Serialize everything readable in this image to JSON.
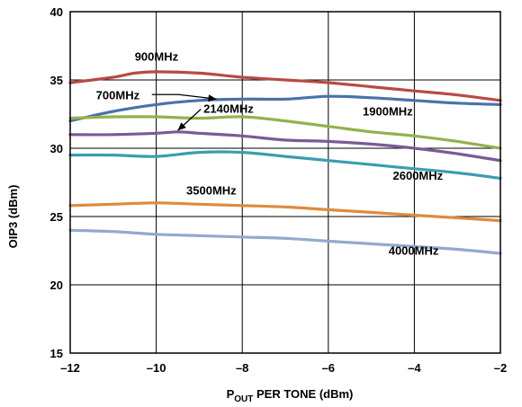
{
  "chart_data": {
    "type": "line",
    "title": "",
    "xlabel": {
      "main": "P",
      "sub": "OUT",
      "rest": " PER TONE (dBm)"
    },
    "ylabel": "OIP3 (dBm)",
    "xlim": [
      -12,
      -2
    ],
    "ylim": [
      15,
      40
    ],
    "xticks": [
      -12,
      -10,
      -8,
      -6,
      -4,
      -2
    ],
    "xtick_labels": [
      "–12",
      "–10",
      "–8",
      "–6",
      "–4",
      "–2"
    ],
    "yticks": [
      15,
      20,
      25,
      30,
      35,
      40
    ],
    "ytick_labels": [
      "15",
      "20",
      "25",
      "30",
      "35",
      "40"
    ],
    "grid": true,
    "series": [
      {
        "name": "900MHz",
        "color": "#b84a45",
        "x": [
          -12,
          -11,
          -10.5,
          -10,
          -9,
          -8,
          -7,
          -6,
          -5,
          -4,
          -3,
          -2
        ],
        "y": [
          34.8,
          35.2,
          35.5,
          35.6,
          35.5,
          35.2,
          35.0,
          34.8,
          34.5,
          34.2,
          33.9,
          33.5
        ]
      },
      {
        "name": "700MHz",
        "color": "#4a72aa",
        "x": [
          -12,
          -11,
          -10,
          -9,
          -8,
          -7,
          -6,
          -5,
          -4,
          -3,
          -2
        ],
        "y": [
          32.0,
          32.7,
          33.2,
          33.5,
          33.6,
          33.6,
          33.8,
          33.7,
          33.5,
          33.3,
          33.2
        ]
      },
      {
        "name": "1900MHz",
        "color": "#94b14e",
        "x": [
          -12,
          -11,
          -10,
          -9,
          -8,
          -7,
          -6,
          -5,
          -4,
          -3,
          -2
        ],
        "y": [
          32.2,
          32.3,
          32.3,
          32.2,
          32.3,
          32.0,
          31.6,
          31.2,
          30.9,
          30.5,
          30.0
        ]
      },
      {
        "name": "2140MHz",
        "color": "#7a5a99",
        "x": [
          -12,
          -11,
          -10,
          -9.5,
          -9,
          -8,
          -7,
          -6,
          -5,
          -4,
          -3,
          -2
        ],
        "y": [
          31.0,
          31.0,
          31.1,
          31.2,
          31.1,
          30.9,
          30.6,
          30.5,
          30.3,
          30.0,
          29.6,
          29.1
        ]
      },
      {
        "name": "2600MHz",
        "color": "#3a9db0",
        "x": [
          -12,
          -11,
          -10,
          -9,
          -8,
          -7,
          -6,
          -5,
          -4,
          -3,
          -2
        ],
        "y": [
          29.5,
          29.5,
          29.4,
          29.7,
          29.7,
          29.4,
          29.1,
          28.8,
          28.5,
          28.2,
          27.8
        ]
      },
      {
        "name": "3500MHz",
        "color": "#e08a3c",
        "x": [
          -12,
          -11,
          -10,
          -9,
          -8,
          -7,
          -6,
          -5,
          -4,
          -3,
          -2
        ],
        "y": [
          25.8,
          25.9,
          26.0,
          25.9,
          25.8,
          25.7,
          25.5,
          25.3,
          25.1,
          24.9,
          24.7
        ]
      },
      {
        "name": "4000MHz",
        "color": "#93a9cf",
        "x": [
          -12,
          -11,
          -10,
          -9,
          -8,
          -7,
          -6,
          -5,
          -4,
          -3,
          -2
        ],
        "y": [
          24.0,
          23.9,
          23.7,
          23.6,
          23.5,
          23.4,
          23.2,
          23.0,
          22.8,
          22.6,
          22.3
        ]
      }
    ],
    "annotations": [
      {
        "text": "900MHz",
        "series": "900MHz",
        "x": -10.5,
        "y": 36.4
      },
      {
        "text": "700MHz",
        "series": "700MHz",
        "x": -11.4,
        "y": 33.6,
        "arrow_to": [
          -8.6,
          33.6
        ]
      },
      {
        "text": "1900MHz",
        "series": "1900MHz",
        "x": -5.2,
        "y": 32.4
      },
      {
        "text": "2140MHz",
        "series": "2140MHz",
        "x": -8.9,
        "y": 32.6,
        "arrow_to": [
          -9.5,
          31.3
        ]
      },
      {
        "text": "2600MHz",
        "series": "2600MHz",
        "x": -4.5,
        "y": 27.7
      },
      {
        "text": "3500MHz",
        "series": "3500MHz",
        "x": -9.3,
        "y": 26.6
      },
      {
        "text": "4000MHz",
        "series": "4000MHz",
        "x": -4.6,
        "y": 22.2
      }
    ]
  }
}
